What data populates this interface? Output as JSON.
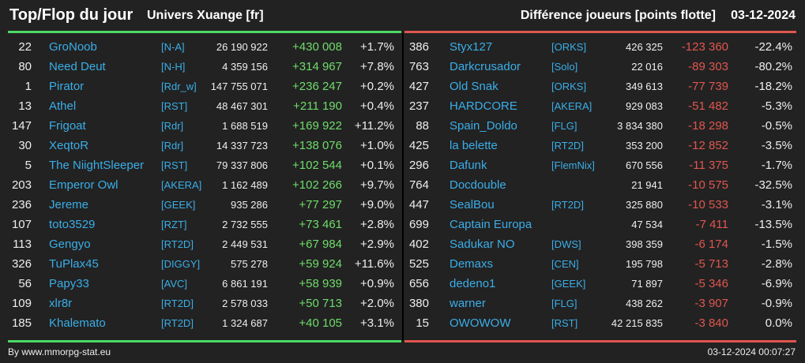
{
  "header": {
    "title": "Top/Flop du jour",
    "subtitle": "Univers Xuange [fr]",
    "metric": "Différence joueurs [points flotte]",
    "date": "03-12-2024"
  },
  "colors": {
    "gain": "#6fdc6a",
    "loss": "#e0564f",
    "link": "#3aaee8",
    "background": "#222222"
  },
  "top": [
    {
      "rank": "22",
      "name": "GroNoob",
      "alliance": "[N-A]",
      "points": "26 190 922",
      "diff": "+430 008",
      "pct": "+1.7%"
    },
    {
      "rank": "80",
      "name": "Need Deut",
      "alliance": "[N-H]",
      "points": "4 359 156",
      "diff": "+314 967",
      "pct": "+7.8%"
    },
    {
      "rank": "1",
      "name": "Pirator",
      "alliance": "[Rdr_w]",
      "points": "147 755 071",
      "diff": "+236 247",
      "pct": "+0.2%"
    },
    {
      "rank": "13",
      "name": "Athel",
      "alliance": "[RST]",
      "points": "48 467 301",
      "diff": "+211 190",
      "pct": "+0.4%"
    },
    {
      "rank": "147",
      "name": "Frigoat",
      "alliance": "[Rdr]",
      "points": "1 688 519",
      "diff": "+169 922",
      "pct": "+11.2%"
    },
    {
      "rank": "30",
      "name": "XeqtoR",
      "alliance": "[Rdr]",
      "points": "14 337 723",
      "diff": "+138 076",
      "pct": "+1.0%"
    },
    {
      "rank": "5",
      "name": "The NiightSleeper",
      "alliance": "[RST]",
      "points": "79 337 806",
      "diff": "+102 544",
      "pct": "+0.1%"
    },
    {
      "rank": "203",
      "name": "Emperor Owl",
      "alliance": "[AKERA]",
      "points": "1 162 489",
      "diff": "+102 266",
      "pct": "+9.7%"
    },
    {
      "rank": "236",
      "name": "Jereme",
      "alliance": "[GEEK]",
      "points": "935 286",
      "diff": "+77 297",
      "pct": "+9.0%"
    },
    {
      "rank": "107",
      "name": "toto3529",
      "alliance": "[RZT]",
      "points": "2 732 555",
      "diff": "+73 461",
      "pct": "+2.8%"
    },
    {
      "rank": "113",
      "name": "Gengyo",
      "alliance": "[RT2D]",
      "points": "2 449 531",
      "diff": "+67 984",
      "pct": "+2.9%"
    },
    {
      "rank": "326",
      "name": "TuPlax45",
      "alliance": "[DIGGY]",
      "points": "575 278",
      "diff": "+59 924",
      "pct": "+11.6%"
    },
    {
      "rank": "56",
      "name": "Papy33",
      "alliance": "[AVC]",
      "points": "6 861 191",
      "diff": "+58 939",
      "pct": "+0.9%"
    },
    {
      "rank": "109",
      "name": "xlr8r",
      "alliance": "[RT2D]",
      "points": "2 578 033",
      "diff": "+50 713",
      "pct": "+2.0%"
    },
    {
      "rank": "185",
      "name": "Khalemato",
      "alliance": "[RT2D]",
      "points": "1 324 687",
      "diff": "+40 105",
      "pct": "+3.1%"
    }
  ],
  "flop": [
    {
      "rank": "386",
      "name": "Styx127",
      "alliance": "[ORKS]",
      "points": "426 325",
      "diff": "-123 360",
      "pct": "-22.4%"
    },
    {
      "rank": "763",
      "name": "Darkcrusador",
      "alliance": "[Solo]",
      "points": "22 016",
      "diff": "-89 303",
      "pct": "-80.2%"
    },
    {
      "rank": "427",
      "name": "Old Snak",
      "alliance": "[ORKS]",
      "points": "349 613",
      "diff": "-77 739",
      "pct": "-18.2%"
    },
    {
      "rank": "237",
      "name": "HARDCORE",
      "alliance": "[AKERA]",
      "points": "929 083",
      "diff": "-51 482",
      "pct": "-5.3%"
    },
    {
      "rank": "88",
      "name": "Spain_Doldo",
      "alliance": "[FLG]",
      "points": "3 834 380",
      "diff": "-18 298",
      "pct": "-0.5%"
    },
    {
      "rank": "425",
      "name": "la belette",
      "alliance": "[RT2D]",
      "points": "353 200",
      "diff": "-12 852",
      "pct": "-3.5%"
    },
    {
      "rank": "296",
      "name": "Dafunk",
      "alliance": "[FlemNix]",
      "points": "670 556",
      "diff": "-11 375",
      "pct": "-1.7%"
    },
    {
      "rank": "764",
      "name": "Docdouble",
      "alliance": "",
      "points": "21 941",
      "diff": "-10 575",
      "pct": "-32.5%"
    },
    {
      "rank": "447",
      "name": "SealBou",
      "alliance": "[RT2D]",
      "points": "325 880",
      "diff": "-10 533",
      "pct": "-3.1%"
    },
    {
      "rank": "699",
      "name": "Captain Europa",
      "alliance": "",
      "points": "47 534",
      "diff": "-7 411",
      "pct": "-13.5%"
    },
    {
      "rank": "402",
      "name": "Sadukar NO",
      "alliance": "[DWS]",
      "points": "398 359",
      "diff": "-6 174",
      "pct": "-1.5%"
    },
    {
      "rank": "525",
      "name": "Demaxs",
      "alliance": "[CEN]",
      "points": "195 798",
      "diff": "-5 713",
      "pct": "-2.8%"
    },
    {
      "rank": "656",
      "name": "dedeno1",
      "alliance": "[GEEK]",
      "points": "71 897",
      "diff": "-5 346",
      "pct": "-6.9%"
    },
    {
      "rank": "380",
      "name": "warner",
      "alliance": "[FLG]",
      "points": "438 262",
      "diff": "-3 907",
      "pct": "-0.9%"
    },
    {
      "rank": "15",
      "name": "OWOWOW",
      "alliance": "[RST]",
      "points": "42 215 835",
      "diff": "-3 840",
      "pct": "0.0%"
    }
  ],
  "footer": {
    "source": "By www.mmorpg-stat.eu",
    "timestamp": "03-12-2024 00:07:27"
  }
}
